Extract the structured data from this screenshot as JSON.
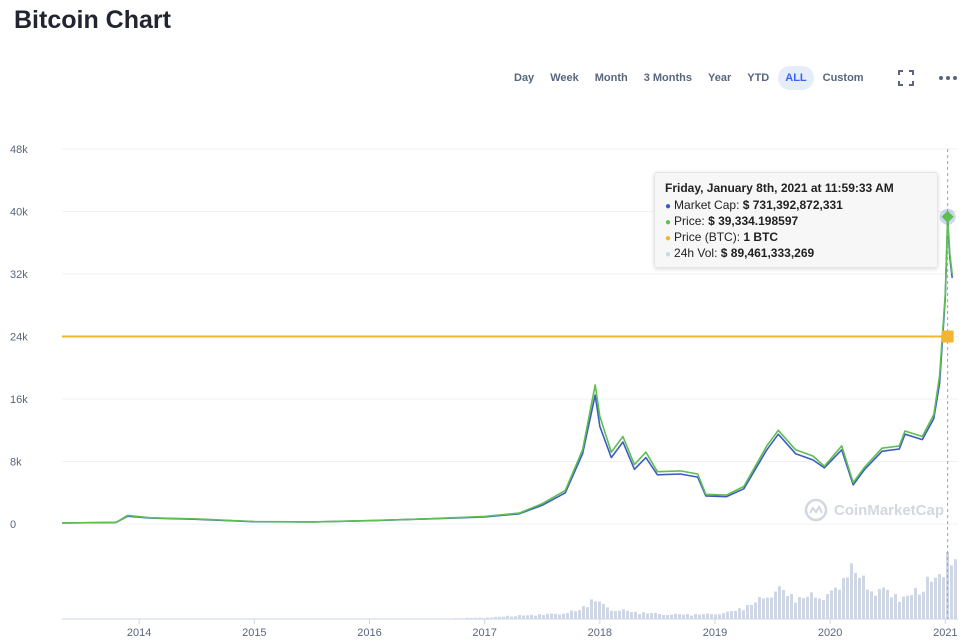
{
  "page": {
    "title": "Bitcoin Chart"
  },
  "range_buttons": [
    {
      "label": "Day",
      "active": false
    },
    {
      "label": "Week",
      "active": false
    },
    {
      "label": "Month",
      "active": false
    },
    {
      "label": "3 Months",
      "active": false
    },
    {
      "label": "Year",
      "active": false
    },
    {
      "label": "YTD",
      "active": false
    },
    {
      "label": "ALL",
      "active": true
    },
    {
      "label": "Custom",
      "active": false
    }
  ],
  "icons": {
    "fullscreen": "fullscreen-icon",
    "menu": "more-options-icon"
  },
  "tooltip": {
    "date": "Friday, January 8th, 2021 at 11:59:33 AM",
    "rows": [
      {
        "label": "Market Cap:",
        "value": "$ 731,392,872,331",
        "color": "#3861fb"
      },
      {
        "label": "Price:",
        "value": "$ 39,334.198597",
        "color": "#16c784"
      },
      {
        "label": "Price (BTC):",
        "value": "1 BTC",
        "color": "#f3ba2f"
      },
      {
        "label": "24h Vol:",
        "value": "$ 89,461,333,269",
        "color": "#cfd6e4"
      }
    ]
  },
  "watermark": {
    "text": "CoinMarketCap"
  },
  "chart_data": {
    "type": "line",
    "y_ticks": [
      "48k",
      "40k",
      "32k",
      "24k",
      "16k",
      "8k",
      "0"
    ],
    "x_ticks": [
      "2014",
      "2015",
      "2016",
      "2017",
      "2018",
      "2019",
      "2020",
      "2021"
    ],
    "ylim": [
      0,
      48000
    ],
    "xlim": [
      2013.33,
      2021.11
    ],
    "grid": true,
    "colors": {
      "market_cap": "#3e5bc2",
      "price": "#5cbf4f",
      "price_btc": "#f2b52f",
      "volume": "#cfd6e4"
    },
    "series": [
      {
        "name": "Market Cap",
        "points": [
          [
            2013.33,
            130
          ],
          [
            2013.8,
            200
          ],
          [
            2013.9,
            1000
          ],
          [
            2014.1,
            750
          ],
          [
            2014.5,
            600
          ],
          [
            2015.0,
            300
          ],
          [
            2015.5,
            250
          ],
          [
            2016.0,
            420
          ],
          [
            2016.5,
            650
          ],
          [
            2017.0,
            900
          ],
          [
            2017.3,
            1300
          ],
          [
            2017.5,
            2400
          ],
          [
            2017.7,
            4000
          ],
          [
            2017.85,
            9000
          ],
          [
            2017.96,
            16500
          ],
          [
            2018.0,
            12500
          ],
          [
            2018.1,
            8500
          ],
          [
            2018.2,
            10500
          ],
          [
            2018.3,
            7000
          ],
          [
            2018.4,
            8500
          ],
          [
            2018.5,
            6300
          ],
          [
            2018.7,
            6400
          ],
          [
            2018.85,
            6000
          ],
          [
            2018.92,
            3600
          ],
          [
            2019.1,
            3500
          ],
          [
            2019.25,
            4500
          ],
          [
            2019.45,
            9500
          ],
          [
            2019.55,
            11500
          ],
          [
            2019.7,
            9000
          ],
          [
            2019.85,
            8200
          ],
          [
            2019.95,
            7200
          ],
          [
            2020.1,
            9500
          ],
          [
            2020.2,
            5000
          ],
          [
            2020.3,
            7000
          ],
          [
            2020.45,
            9300
          ],
          [
            2020.6,
            9600
          ],
          [
            2020.65,
            11500
          ],
          [
            2020.8,
            10800
          ],
          [
            2020.9,
            13500
          ],
          [
            2020.95,
            18000
          ],
          [
            2021.0,
            29000
          ],
          [
            2021.02,
            38500
          ],
          [
            2021.04,
            34000
          ],
          [
            2021.06,
            31500
          ]
        ]
      },
      {
        "name": "Price",
        "points": [
          [
            2013.33,
            130
          ],
          [
            2013.8,
            220
          ],
          [
            2013.9,
            1100
          ],
          [
            2014.1,
            800
          ],
          [
            2014.5,
            650
          ],
          [
            2015.0,
            320
          ],
          [
            2015.5,
            270
          ],
          [
            2016.0,
            440
          ],
          [
            2016.5,
            670
          ],
          [
            2017.0,
            970
          ],
          [
            2017.3,
            1400
          ],
          [
            2017.5,
            2600
          ],
          [
            2017.7,
            4300
          ],
          [
            2017.85,
            9500
          ],
          [
            2017.96,
            17800
          ],
          [
            2018.0,
            13800
          ],
          [
            2018.1,
            9200
          ],
          [
            2018.2,
            11200
          ],
          [
            2018.3,
            7600
          ],
          [
            2018.4,
            9200
          ],
          [
            2018.5,
            6700
          ],
          [
            2018.7,
            6800
          ],
          [
            2018.85,
            6400
          ],
          [
            2018.92,
            3800
          ],
          [
            2019.1,
            3700
          ],
          [
            2019.25,
            4800
          ],
          [
            2019.45,
            10000
          ],
          [
            2019.55,
            12000
          ],
          [
            2019.7,
            9500
          ],
          [
            2019.85,
            8700
          ],
          [
            2019.95,
            7400
          ],
          [
            2020.1,
            10000
          ],
          [
            2020.2,
            5300
          ],
          [
            2020.3,
            7300
          ],
          [
            2020.45,
            9700
          ],
          [
            2020.6,
            10000
          ],
          [
            2020.65,
            11900
          ],
          [
            2020.8,
            11200
          ],
          [
            2020.9,
            14000
          ],
          [
            2020.95,
            19000
          ],
          [
            2021.0,
            29500
          ],
          [
            2021.02,
            39334
          ],
          [
            2021.04,
            34500
          ],
          [
            2021.06,
            32000
          ]
        ]
      },
      {
        "name": "Price (BTC)",
        "value": 24000
      },
      {
        "name": "24h Vol",
        "x": [
          2013.33,
          2016.5,
          2017.0,
          2017.3,
          2017.6,
          2017.8,
          2017.92,
          2017.96,
          2018.0,
          2018.1,
          2018.3,
          2018.6,
          2018.9,
          2019.1,
          2019.2,
          2019.35,
          2019.45,
          2019.55,
          2019.7,
          2019.85,
          2020.0,
          2020.1,
          2020.15,
          2020.2,
          2020.3,
          2020.45,
          2020.6,
          2020.75,
          2020.85,
          2020.95,
          2021.0,
          2021.02,
          2021.04,
          2021.06
        ],
        "values": [
          0.0,
          0.0,
          0.02,
          0.05,
          0.08,
          0.12,
          0.28,
          0.3,
          0.22,
          0.15,
          0.1,
          0.07,
          0.07,
          0.1,
          0.15,
          0.25,
          0.4,
          0.45,
          0.3,
          0.35,
          0.4,
          0.55,
          0.85,
          0.7,
          0.5,
          0.45,
          0.3,
          0.4,
          0.55,
          0.65,
          0.9,
          1.0,
          0.95,
          0.85
        ]
      }
    ]
  }
}
